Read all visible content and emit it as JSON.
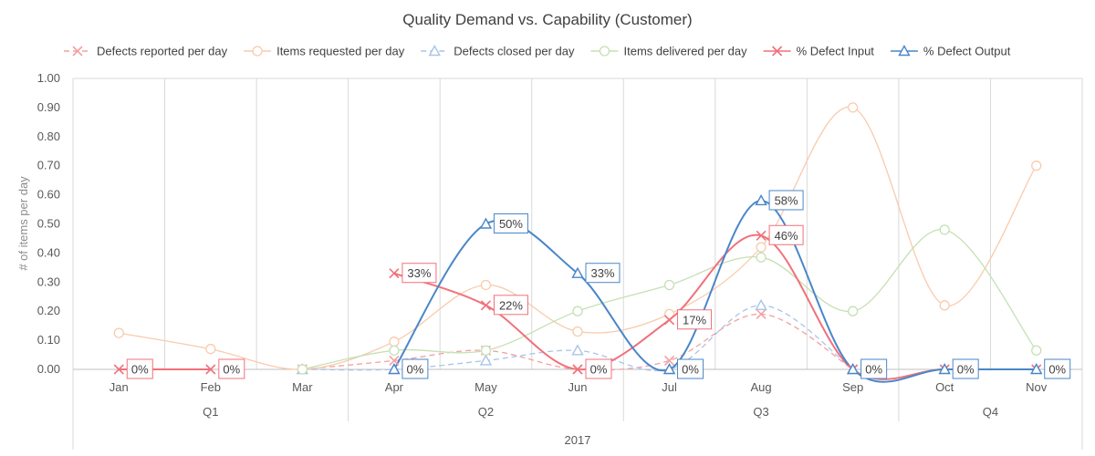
{
  "chart_data": {
    "type": "line",
    "title": "Quality Demand vs. Capability (Customer)",
    "xlabel": "",
    "ylabel": "# of items per day",
    "ylim": [
      0,
      1
    ],
    "yticks": [
      "0.00",
      "0.10",
      "0.20",
      "0.30",
      "0.40",
      "0.50",
      "0.60",
      "0.70",
      "0.80",
      "0.90",
      "1.00"
    ],
    "categories": [
      "Jan",
      "Feb",
      "Mar",
      "Apr",
      "May",
      "Jun",
      "Jul",
      "Aug",
      "Sep",
      "Oct",
      "Nov"
    ],
    "quarters": [
      {
        "label": "Q1",
        "months": [
          "Jan",
          "Feb",
          "Mar"
        ]
      },
      {
        "label": "Q2",
        "months": [
          "Apr",
          "May",
          "Jun"
        ]
      },
      {
        "label": "Q3",
        "months": [
          "Jul",
          "Aug",
          "Sep"
        ]
      },
      {
        "label": "Q4",
        "months": [
          "Oct",
          "Nov"
        ]
      }
    ],
    "year": "2017",
    "grid": "vertical category separators",
    "legend_position": "top",
    "series": [
      {
        "name": "Defects reported per day",
        "values": [
          null,
          null,
          0.0,
          0.03,
          0.065,
          0.0,
          0.03,
          0.19,
          0.0,
          null,
          null
        ],
        "color": "#f4a0a0",
        "dash": true,
        "marker": "x"
      },
      {
        "name": "Items requested per day",
        "values": [
          0.125,
          0.07,
          0.0,
          0.095,
          0.29,
          0.13,
          0.19,
          0.42,
          0.9,
          0.22,
          0.7
        ],
        "color": "#f8cbad",
        "dash": false,
        "marker": "circle"
      },
      {
        "name": "Defects closed per day",
        "values": [
          null,
          null,
          0.0,
          0.0,
          0.03,
          0.065,
          0.0,
          0.22,
          0.0,
          null,
          null
        ],
        "color": "#a9c4e8",
        "dash": true,
        "marker": "triangle"
      },
      {
        "name": "Items delivered per day",
        "values": [
          null,
          null,
          0.0,
          0.065,
          0.065,
          0.2,
          0.29,
          0.385,
          0.2,
          0.48,
          0.065
        ],
        "color": "#c5e0b4",
        "dash": false,
        "marker": "circle"
      },
      {
        "name": "% Defect Input",
        "values": [
          0.0,
          0.0,
          null,
          0.33,
          0.22,
          0.0,
          0.17,
          0.46,
          0.0,
          0.0,
          0.0
        ],
        "color": "#f0717a",
        "dash": false,
        "marker": "x",
        "labels": [
          "0%",
          "0%",
          null,
          "33%",
          "22%",
          "0%",
          "17%",
          "46%",
          null,
          null,
          null
        ],
        "label_border": "#f0717a"
      },
      {
        "name": "% Defect Output",
        "values": [
          null,
          null,
          null,
          0.0,
          0.5,
          0.33,
          0.0,
          0.58,
          0.0,
          0.0,
          0.0
        ],
        "color": "#4a86c8",
        "dash": false,
        "marker": "triangle",
        "labels": [
          null,
          null,
          null,
          "0%",
          "50%",
          "33%",
          "0%",
          "58%",
          "0%",
          "0%",
          "0%"
        ],
        "label_border": "#4a86c8"
      }
    ]
  }
}
